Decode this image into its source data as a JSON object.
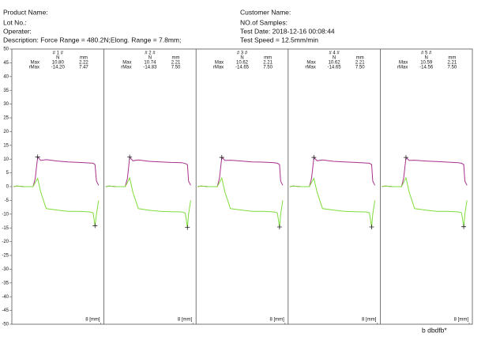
{
  "header": {
    "left": [
      "Product Name:",
      "Lot No.:",
      "Operater:",
      "Description:   Force Range = 480.2N;Elong. Range = 7.8mm;"
    ],
    "right": [
      "Customer Name:",
      "NO.of Samples:",
      "Test Date: 2018-12-16  00:08:44",
      "Test Speed = 12.5mm/min"
    ]
  },
  "chart_data": [
    {
      "type": "line",
      "title": "# 1 #",
      "stats": {
        "columns": [
          "N",
          "mm"
        ],
        "rows": [
          {
            "label": "Max",
            "cells": [
              "10.80",
              "2.22"
            ]
          },
          {
            "label": "rMax",
            "cells": [
              "-14.20",
              "7.47"
            ]
          }
        ]
      },
      "x": [
        0,
        0.3,
        1.0,
        1.8,
        2.0,
        2.22,
        2.5,
        3.0,
        4.0,
        5.0,
        6.0,
        7.0,
        7.3,
        7.47,
        7.6,
        7.8
      ],
      "series": [
        {
          "color": "#a8308c",
          "values": [
            0,
            0.2,
            0,
            0,
            3,
            10.8,
            9.5,
            9.8,
            9.3,
            9.0,
            8.8,
            8.6,
            8.5,
            8.0,
            2,
            0.5
          ]
        },
        {
          "color": "#7fdc3a",
          "values": [
            0,
            0.2,
            0,
            0,
            1.5,
            3.0,
            -2,
            -8,
            -8.5,
            -9,
            -9,
            -9.2,
            -9.5,
            -14.2,
            -10,
            -5
          ]
        }
      ],
      "xlim": [
        0,
        8
      ],
      "xticks": [
        8
      ],
      "xlabel": "[mm]",
      "ylim": [
        -50,
        50
      ],
      "yticks": [
        50,
        45,
        40,
        35,
        30,
        25,
        20,
        15,
        10,
        5,
        0,
        -5,
        -10,
        -15,
        -20,
        -25,
        -30,
        -35,
        -40,
        -45,
        -50
      ]
    },
    {
      "type": "line",
      "title": "# 2 #",
      "stats": {
        "columns": [
          "N",
          "mm"
        ],
        "rows": [
          {
            "label": "Max",
            "cells": [
              "10.74",
              "2.21"
            ]
          },
          {
            "label": "rMax",
            "cells": [
              "-14.83",
              "7.50"
            ]
          }
        ]
      },
      "x": [
        0,
        0.3,
        1.0,
        1.8,
        2.0,
        2.21,
        2.5,
        3.0,
        4.0,
        5.0,
        6.0,
        7.0,
        7.3,
        7.5,
        7.6,
        7.8
      ],
      "series": [
        {
          "color": "#a8308c",
          "values": [
            0,
            0.2,
            0,
            0,
            3,
            10.74,
            9.4,
            9.7,
            9.2,
            9.0,
            8.8,
            8.7,
            8.4,
            8.0,
            2,
            0.5
          ]
        },
        {
          "color": "#7fdc3a",
          "values": [
            0,
            0.2,
            0,
            0,
            1.5,
            3.2,
            -2,
            -8,
            -8.6,
            -9,
            -9.1,
            -9.2,
            -9.6,
            -14.83,
            -10,
            -5
          ]
        }
      ],
      "xlim": [
        0,
        8
      ],
      "xticks": [
        8
      ],
      "xlabel": "[mm]",
      "ylim": [
        -50,
        50
      ]
    },
    {
      "type": "line",
      "title": "# 3 #",
      "stats": {
        "columns": [
          "N",
          "mm"
        ],
        "rows": [
          {
            "label": "Max",
            "cells": [
              "10.62",
              "2.21"
            ]
          },
          {
            "label": "rMax",
            "cells": [
              "-14.65",
              "7.50"
            ]
          }
        ]
      },
      "x": [
        0,
        0.3,
        1.0,
        1.8,
        2.0,
        2.21,
        2.5,
        3.0,
        4.0,
        5.0,
        6.0,
        7.0,
        7.3,
        7.5,
        7.6,
        7.8
      ],
      "series": [
        {
          "color": "#a8308c",
          "values": [
            0,
            0.2,
            0,
            0,
            3,
            10.62,
            9.5,
            9.6,
            9.3,
            9.0,
            8.9,
            8.7,
            8.5,
            8.0,
            2,
            0.5
          ]
        },
        {
          "color": "#7fdc3a",
          "values": [
            0,
            0.2,
            0,
            0,
            1.5,
            3.1,
            -2,
            -8,
            -8.5,
            -9,
            -9,
            -9.2,
            -9.5,
            -14.65,
            -10,
            -5
          ]
        }
      ],
      "xlim": [
        0,
        8
      ],
      "xticks": [
        8
      ],
      "xlabel": "[mm]",
      "ylim": [
        -50,
        50
      ]
    },
    {
      "type": "line",
      "title": "# 4 #",
      "stats": {
        "columns": [
          "N",
          "mm"
        ],
        "rows": [
          {
            "label": "Max",
            "cells": [
              "10.62",
              "2.21"
            ]
          },
          {
            "label": "rMax",
            "cells": [
              "-14.65",
              "7.50"
            ]
          }
        ]
      },
      "x": [
        0,
        0.3,
        1.0,
        1.8,
        2.0,
        2.21,
        2.5,
        3.0,
        4.0,
        5.0,
        6.0,
        7.0,
        7.3,
        7.5,
        7.6,
        7.8
      ],
      "series": [
        {
          "color": "#a8308c",
          "values": [
            0,
            0.2,
            0,
            0,
            3,
            10.62,
            9.4,
            9.7,
            9.2,
            9.0,
            8.8,
            8.6,
            8.5,
            8.0,
            2,
            0.5
          ]
        },
        {
          "color": "#7fdc3a",
          "values": [
            0,
            0.2,
            0,
            0,
            1.5,
            3.0,
            -2,
            -8,
            -8.5,
            -9,
            -9.1,
            -9.2,
            -9.5,
            -14.65,
            -10,
            -5
          ]
        }
      ],
      "xlim": [
        0,
        8
      ],
      "xticks": [
        8
      ],
      "xlabel": "[mm]",
      "ylim": [
        -50,
        50
      ]
    },
    {
      "type": "line",
      "title": "# 5 #",
      "stats": {
        "columns": [
          "N",
          "mm"
        ],
        "rows": [
          {
            "label": "Max",
            "cells": [
              "10.59",
              "2.21"
            ]
          },
          {
            "label": "rMax",
            "cells": [
              "-14.56",
              "7.50"
            ]
          }
        ]
      },
      "x": [
        0,
        0.3,
        1.0,
        1.8,
        2.0,
        2.21,
        2.5,
        3.0,
        4.0,
        5.0,
        6.0,
        7.0,
        7.3,
        7.5,
        7.6,
        7.8
      ],
      "series": [
        {
          "color": "#a8308c",
          "values": [
            0,
            0.2,
            0,
            0,
            3,
            10.59,
            9.5,
            9.6,
            9.3,
            9.1,
            8.9,
            8.7,
            8.5,
            8.0,
            2,
            0.5
          ]
        },
        {
          "color": "#7fdc3a",
          "values": [
            0,
            0.2,
            0,
            0,
            1.5,
            3.2,
            -2,
            -8,
            -8.5,
            -9,
            -9,
            -9.2,
            -9.5,
            -14.56,
            -10,
            -5
          ]
        }
      ],
      "xlim": [
        0,
        8
      ],
      "xticks": [
        8
      ],
      "xlabel": "[mm]",
      "ylim": [
        -50,
        50
      ]
    }
  ],
  "footer": "b dbdfb*"
}
